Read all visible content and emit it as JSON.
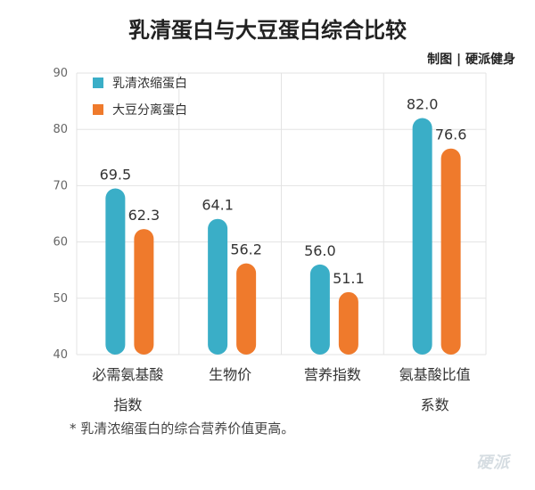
{
  "title": "乳清蛋白与大豆蛋白综合比较",
  "credit": "制图 | 硬派健身",
  "footnote": "* 乳清浓缩蛋白的综合营养价值更高。",
  "watermark": "硬派",
  "chart_data": {
    "type": "bar",
    "categories": [
      [
        "必需氨基酸",
        "指数"
      ],
      [
        "生物价"
      ],
      [
        "营养指数"
      ],
      [
        "氨基酸比值",
        "系数"
      ]
    ],
    "series": [
      {
        "name": "乳清浓缩蛋白",
        "color": "#3aaec7",
        "values": [
          69.5,
          64.1,
          56.0,
          82.0
        ],
        "labels": [
          "69.5",
          "64.1",
          "56.0",
          "82.0"
        ]
      },
      {
        "name": "大豆分离蛋白",
        "color": "#ef7a2c",
        "values": [
          62.3,
          56.2,
          51.1,
          76.6
        ],
        "labels": [
          "62.3",
          "56.2",
          "51.1",
          "76.6"
        ]
      }
    ],
    "ylim": [
      40,
      90
    ],
    "yticks": [
      40,
      50,
      60,
      70,
      80,
      90
    ],
    "grid": true,
    "legend": "top-left"
  }
}
